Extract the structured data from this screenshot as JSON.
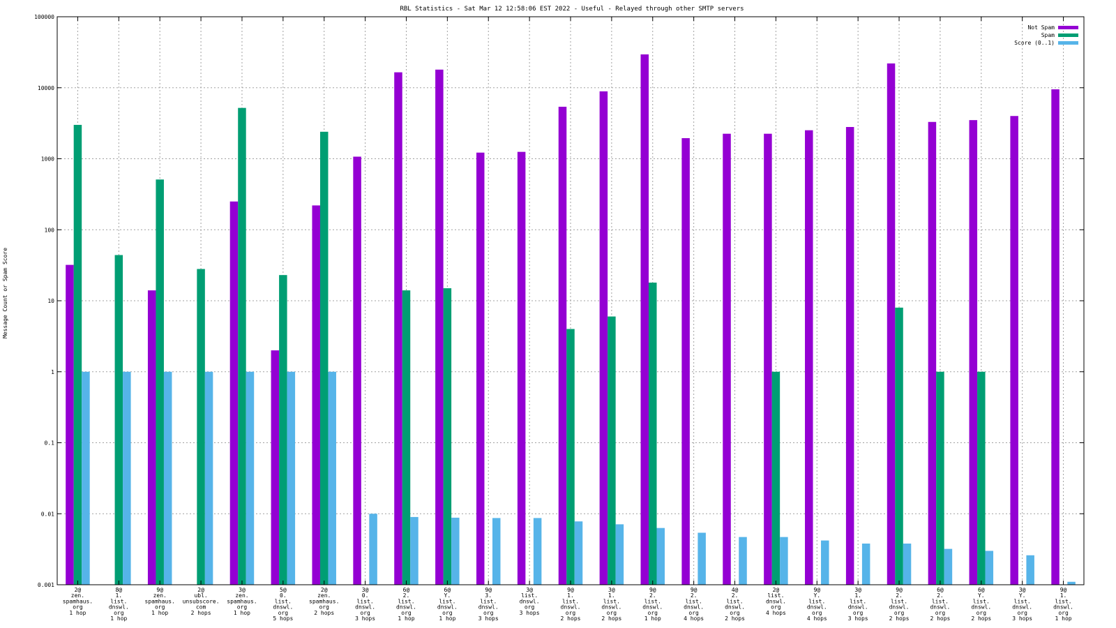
{
  "chart_data": {
    "type": "bar",
    "title": "RBL Statistics - Sat Mar 12 12:58:06 EST 2022 - Useful - Relayed through other SMTP servers",
    "xlabel": "",
    "ylabel": "Message Count or Spam Score",
    "yscale": "log",
    "ylim": [
      0.001,
      100000
    ],
    "yticks": [
      "0.001",
      "0.01",
      "0.1",
      "1",
      "10",
      "100",
      "1000",
      "10000",
      "100000"
    ],
    "grid": true,
    "legend_position": "top-right",
    "categories": [
      [
        "2@",
        "zen.",
        "spamhaus.",
        "org",
        "1 hop"
      ],
      [
        "8@",
        "1.",
        "list.",
        "dnswl.",
        "org",
        "1 hop"
      ],
      [
        "9@",
        "zen.",
        "spamhaus.",
        "org",
        "1 hop"
      ],
      [
        "2@",
        "ubl.",
        "unsubscore.",
        "com",
        "2 hops"
      ],
      [
        "3@",
        "zen.",
        "spamhaus.",
        "org",
        "1 hop"
      ],
      [
        "5@",
        "0.",
        "list.",
        "dnswl.",
        "org",
        "5 hops"
      ],
      [
        "2@",
        "zen.",
        "spamhaus.",
        "org",
        "2 hops"
      ],
      [
        "3@",
        "0.",
        "list.",
        "dnswl.",
        "org",
        "3 hops"
      ],
      [
        "6@",
        "2.",
        "list.",
        "dnswl.",
        "org",
        "1 hop"
      ],
      [
        "6@",
        "Y.",
        "list.",
        "dnswl.",
        "org",
        "1 hop"
      ],
      [
        "9@",
        "3.",
        "list.",
        "dnswl.",
        "org",
        "3 hops"
      ],
      [
        "3@",
        "list.",
        "dnswl.",
        "org",
        "3 hops"
      ],
      [
        "9@",
        "1.",
        "list.",
        "dnswl.",
        "org",
        "2 hops"
      ],
      [
        "3@",
        "1.",
        "list.",
        "dnswl.",
        "org",
        "2 hops"
      ],
      [
        "9@",
        "2.",
        "list.",
        "dnswl.",
        "org",
        "1 hop"
      ],
      [
        "9@",
        "2.",
        "list.",
        "dnswl.",
        "org",
        "4 hops"
      ],
      [
        "4@",
        "2.",
        "list.",
        "dnswl.",
        "org",
        "2 hops"
      ],
      [
        "2@",
        "list.",
        "dnswl.",
        "org",
        "4 hops"
      ],
      [
        "9@",
        "Y.",
        "list.",
        "dnswl.",
        "org",
        "4 hops"
      ],
      [
        "3@",
        "1.",
        "list.",
        "dnswl.",
        "org",
        "3 hops"
      ],
      [
        "9@",
        "2.",
        "list.",
        "dnswl.",
        "org",
        "2 hops"
      ],
      [
        "6@",
        "2.",
        "list.",
        "dnswl.",
        "org",
        "2 hops"
      ],
      [
        "6@",
        "Y.",
        "list.",
        "dnswl.",
        "org",
        "2 hops"
      ],
      [
        "3@",
        "Y.",
        "list.",
        "dnswl.",
        "org",
        "3 hops"
      ],
      [
        "9@",
        "1.",
        "list.",
        "dnswl.",
        "org",
        "1 hop"
      ]
    ],
    "series": [
      {
        "name": "Not Spam",
        "color": "#9400d3",
        "values": [
          32,
          null,
          14,
          null,
          250,
          2,
          220,
          1070,
          16500,
          18000,
          1220,
          1250,
          5400,
          8900,
          29500,
          1950,
          2250,
          2250,
          2520,
          2800,
          22000,
          3300,
          3500,
          4000,
          9500
        ]
      },
      {
        "name": "Spam",
        "color": "#009e73",
        "values": [
          3000,
          44,
          510,
          28,
          5200,
          23,
          2400,
          null,
          14,
          15,
          null,
          null,
          4,
          6,
          18,
          null,
          null,
          1,
          null,
          null,
          8,
          1,
          1,
          null,
          null
        ]
      },
      {
        "name": "Score (0..1)",
        "color": "#56b4e9",
        "values": [
          1,
          1,
          1,
          1,
          1,
          1,
          1,
          0.01,
          0.009,
          0.0088,
          0.0087,
          0.0087,
          0.0078,
          0.0071,
          0.0063,
          0.0054,
          0.0047,
          0.0047,
          0.0042,
          0.0038,
          0.0038,
          0.0032,
          0.003,
          0.0026,
          0.0011
        ]
      }
    ]
  }
}
